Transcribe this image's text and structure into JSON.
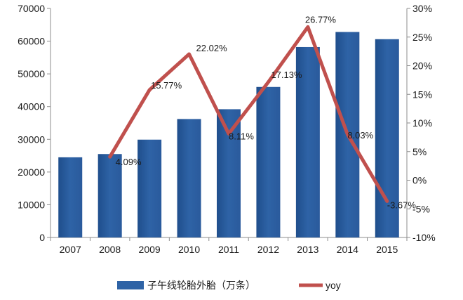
{
  "chart_data": {
    "type": "bar",
    "categories": [
      "2007",
      "2008",
      "2009",
      "2010",
      "2011",
      "2012",
      "2013",
      "2014",
      "2015"
    ],
    "series": [
      {
        "name": "子午线轮胎外胎（万条）",
        "type": "bar",
        "axis": "left",
        "color": "#2e63a6",
        "values": [
          24500,
          25500,
          29900,
          36200,
          39200,
          46000,
          58200,
          62800,
          60600
        ]
      },
      {
        "name": "yoy",
        "type": "line",
        "axis": "right",
        "color": "#c0504d",
        "values": [
          null,
          4.09,
          15.77,
          22.02,
          8.11,
          17.13,
          26.77,
          8.03,
          -3.67
        ],
        "labels": [
          "",
          "4.09%",
          "15.77%",
          "22.02%",
          "8.11%",
          "17.13%",
          "26.77%",
          "8.03%",
          "-3.67%"
        ]
      }
    ],
    "left_axis": {
      "ylim": [
        0,
        70000
      ],
      "ticks": [
        0,
        10000,
        20000,
        30000,
        40000,
        50000,
        60000,
        70000
      ],
      "tick_labels": [
        "0",
        "10000",
        "20000",
        "30000",
        "40000",
        "50000",
        "60000",
        "70000"
      ]
    },
    "right_axis": {
      "ylim": [
        -10,
        30
      ],
      "ticks": [
        -10,
        -5,
        0,
        5,
        10,
        15,
        20,
        25,
        30
      ],
      "tick_labels": [
        "-10%",
        "-5%",
        "0%",
        "5%",
        "10%",
        "15%",
        "20%",
        "25%",
        "30%"
      ]
    },
    "legend": {
      "position": "bottom"
    },
    "grid": false,
    "title": "",
    "xlabel": "",
    "ylabel": ""
  }
}
